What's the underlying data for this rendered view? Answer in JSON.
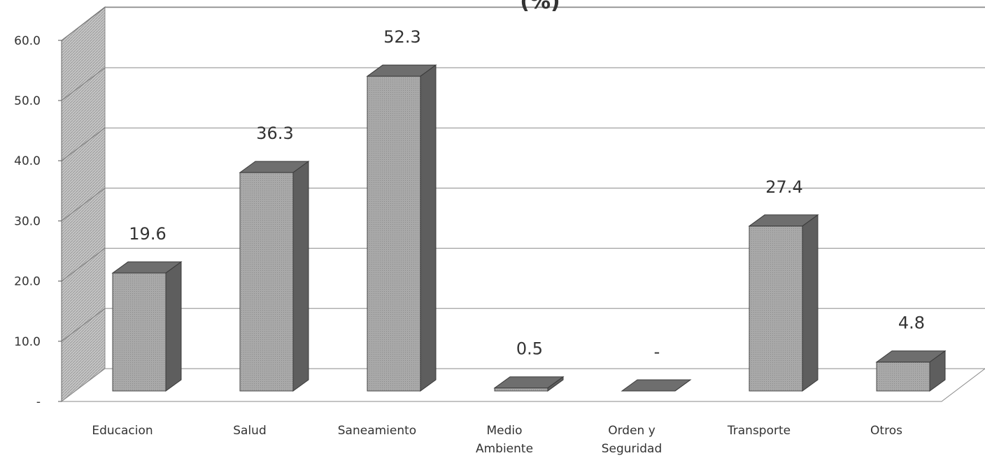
{
  "chart_data": {
    "type": "bar",
    "categories": [
      [
        "Educacion"
      ],
      [
        "Salud"
      ],
      [
        "Saneamiento"
      ],
      [
        "Medio",
        "Ambiente"
      ],
      [
        "Orden y",
        "Seguridad"
      ],
      [
        "Transporte"
      ],
      [
        "Otros"
      ]
    ],
    "values": [
      19.6,
      36.3,
      52.3,
      0.5,
      0,
      27.4,
      4.8
    ],
    "data_labels": [
      "19.6",
      "36.3",
      "52.3",
      "0.5",
      "-",
      "27.4",
      "4.8"
    ],
    "y_ticks": [
      "-",
      "10.0",
      "20.0",
      "30.0",
      "40.0",
      "50.0",
      "60.0"
    ],
    "ylim": [
      0,
      60
    ],
    "title_fragment": "(%)",
    "grid": true,
    "colors": {
      "bar_front": "#a6a6a6",
      "bar_top": "#6e6e6e",
      "bar_side": "#5e5e5e",
      "wall": "#bdbdbd",
      "grid": "#8a8a8a"
    }
  }
}
